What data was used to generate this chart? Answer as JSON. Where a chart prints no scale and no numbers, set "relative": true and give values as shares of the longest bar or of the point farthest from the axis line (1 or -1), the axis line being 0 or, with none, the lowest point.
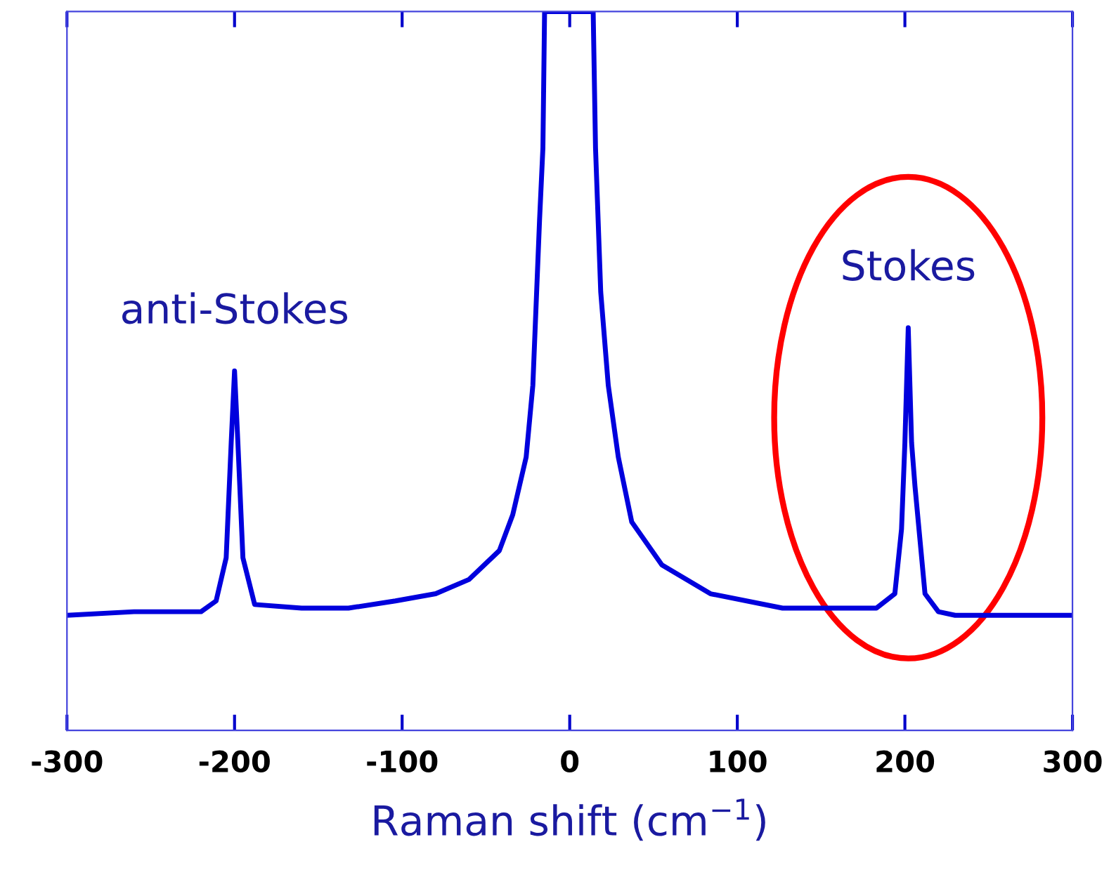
{
  "chart_data": {
    "type": "line",
    "xlabel": "Raman shift (cm$^{−1}$)",
    "relative": true,
    "xlim": [
      -300,
      300
    ],
    "xticks": [
      -300,
      -200,
      -100,
      0,
      100,
      200,
      300
    ],
    "tick_labels": "x",
    "grid": false,
    "legend": false,
    "marker": "none",
    "line_style": "solid",
    "series": [
      {
        "color": "#0000dd",
        "x": [
          -300,
          -260,
          -220,
          -211,
          -205,
          -202,
          -200,
          -198,
          -195,
          -188,
          -160,
          -132,
          -104,
          -80,
          -60,
          -42,
          -34,
          -26,
          -22,
          -18,
          -16,
          -15,
          14,
          15.4,
          18.5,
          23,
          29,
          37,
          55,
          84,
          127,
          160,
          183,
          194,
          198,
          200,
          202,
          204,
          206,
          212,
          220,
          230,
          260,
          300
        ],
        "values": [
          0.16,
          0.165,
          0.165,
          0.18,
          0.24,
          0.4,
          0.5,
          0.4,
          0.24,
          0.175,
          0.17,
          0.17,
          0.18,
          0.19,
          0.21,
          0.25,
          0.3,
          0.38,
          0.48,
          0.71,
          0.81,
          1.0,
          1.0,
          0.81,
          0.61,
          0.48,
          0.38,
          0.29,
          0.23,
          0.19,
          0.17,
          0.17,
          0.17,
          0.19,
          0.28,
          0.4,
          0.56,
          0.4,
          0.34,
          0.19,
          0.165,
          0.16,
          0.16,
          0.16
        ]
      }
    ],
    "annotations": [
      {
        "text": "anti-Stokes",
        "x": -200,
        "y": 0.5
      },
      {
        "text": "Stokes",
        "x": 202,
        "y": 0.56
      }
    ]
  }
}
